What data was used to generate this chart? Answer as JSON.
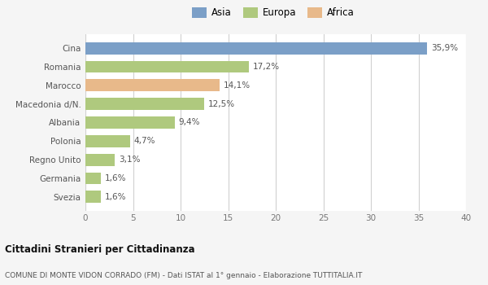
{
  "categories": [
    "Svezia",
    "Germania",
    "Regno Unito",
    "Polonia",
    "Albania",
    "Macedonia d/N.",
    "Marocco",
    "Romania",
    "Cina"
  ],
  "values": [
    1.6,
    1.6,
    3.1,
    4.7,
    9.4,
    12.5,
    14.1,
    17.2,
    35.9
  ],
  "labels": [
    "1,6%",
    "1,6%",
    "3,1%",
    "4,7%",
    "9,4%",
    "12,5%",
    "14,1%",
    "17,2%",
    "35,9%"
  ],
  "colors": [
    "#afc97e",
    "#afc97e",
    "#afc97e",
    "#afc97e",
    "#afc97e",
    "#afc97e",
    "#e8b98a",
    "#afc97e",
    "#7b9fc7"
  ],
  "legend": [
    {
      "label": "Asia",
      "color": "#7b9fc7"
    },
    {
      "label": "Europa",
      "color": "#afc97e"
    },
    {
      "label": "Africa",
      "color": "#e8b98a"
    }
  ],
  "xlim": [
    0,
    40
  ],
  "xticks": [
    0,
    5,
    10,
    15,
    20,
    25,
    30,
    35,
    40
  ],
  "title_bold": "Cittadini Stranieri per Cittadinanza",
  "subtitle": "COMUNE DI MONTE VIDON CORRADO (FM) - Dati ISTAT al 1° gennaio - Elaborazione TUTTITALIA.IT",
  "background_color": "#f5f5f5",
  "bar_background": "#ffffff",
  "grid_color": "#d0d0d0"
}
